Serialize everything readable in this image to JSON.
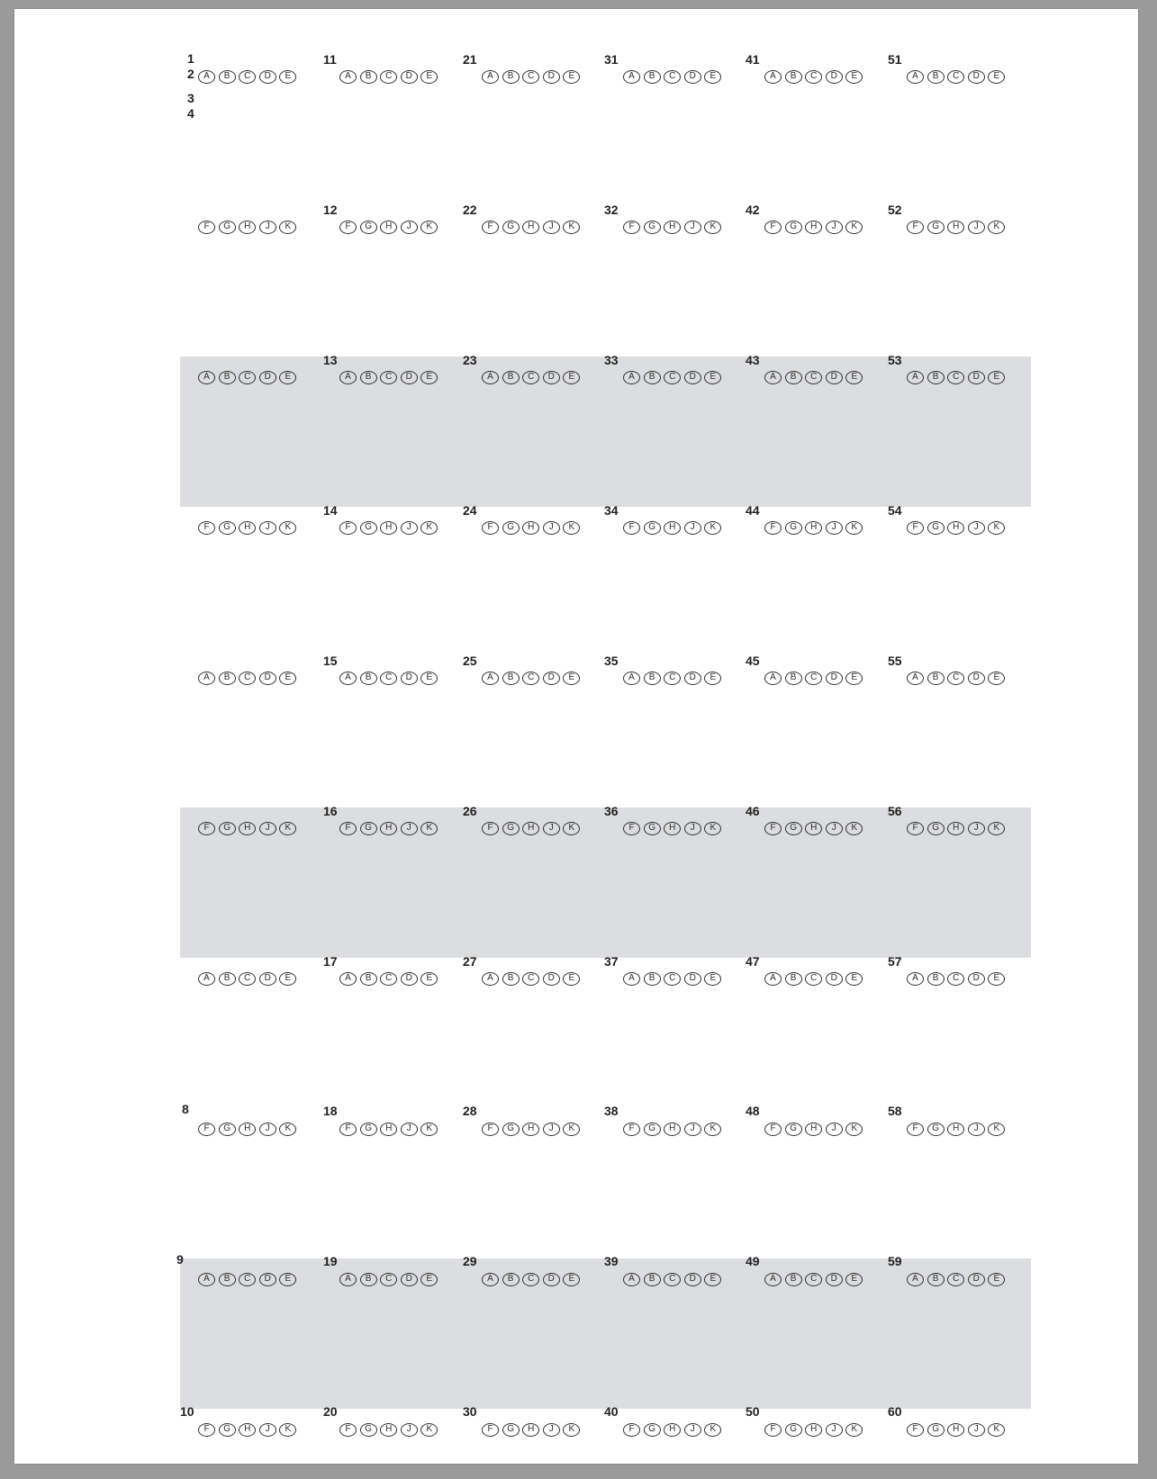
{
  "choices": {
    "odd": [
      "A",
      "B",
      "C",
      "D",
      "E"
    ],
    "even": [
      "F",
      "G",
      "H",
      "J",
      "K"
    ]
  },
  "columns": [
    {
      "numbers": [
        "1",
        "2",
        "3",
        "4",
        "",
        "",
        "",
        "8",
        "9",
        "10"
      ]
    },
    {
      "numbers": [
        "11",
        "12",
        "13",
        "14",
        "15",
        "16",
        "17",
        "18",
        "19",
        "20"
      ]
    },
    {
      "numbers": [
        "21",
        "22",
        "23",
        "24",
        "25",
        "26",
        "27",
        "28",
        "29",
        "30"
      ]
    },
    {
      "numbers": [
        "31",
        "32",
        "33",
        "34",
        "35",
        "36",
        "37",
        "38",
        "39",
        "40"
      ]
    },
    {
      "numbers": [
        "41",
        "42",
        "43",
        "44",
        "45",
        "46",
        "47",
        "48",
        "49",
        "50"
      ]
    },
    {
      "numbers": [
        "51",
        "52",
        "53",
        "54",
        "55",
        "56",
        "57",
        "58",
        "59",
        "60"
      ]
    }
  ],
  "colors": {
    "page": "#ffffff",
    "frame": "#9a9a9a",
    "band": "#dcdddf",
    "ink": "#2e2e2e"
  }
}
